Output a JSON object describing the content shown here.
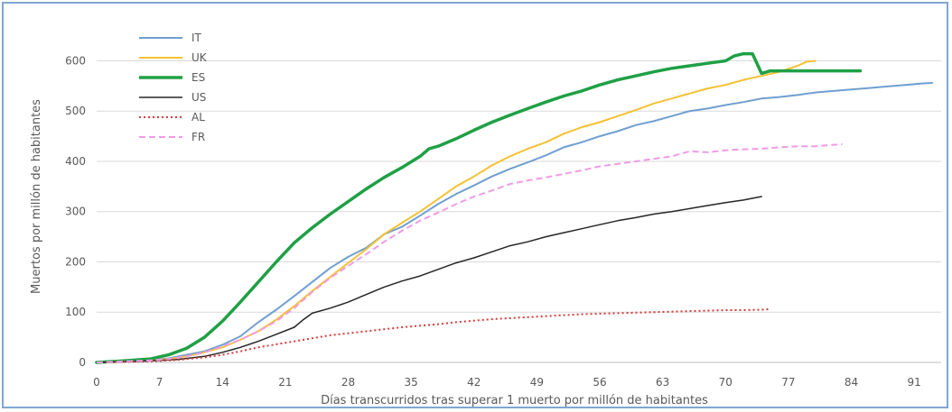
{
  "chart_data": {
    "type": "line",
    "title": "",
    "xlabel": "Días transcurridos tras superar 1 muerto por millón de habitantes",
    "ylabel": "Muertos por millón de habitantes",
    "xlim": [
      0,
      94
    ],
    "ylim": [
      0,
      660
    ],
    "x_ticks": [
      0,
      7,
      14,
      21,
      28,
      35,
      42,
      49,
      56,
      63,
      70,
      77,
      84,
      91
    ],
    "y_ticks": [
      0,
      100,
      200,
      300,
      400,
      500,
      600
    ],
    "grid": "horizontal",
    "legend_position": "top-left",
    "series": [
      {
        "name": "IT",
        "color": "#6f9fd0",
        "width": 2,
        "dash": "",
        "points": [
          [
            0,
            0
          ],
          [
            3,
            2
          ],
          [
            6,
            5
          ],
          [
            8,
            8
          ],
          [
            10,
            15
          ],
          [
            12,
            22
          ],
          [
            14,
            35
          ],
          [
            16,
            52
          ],
          [
            18,
            80
          ],
          [
            20,
            105
          ],
          [
            22,
            132
          ],
          [
            24,
            160
          ],
          [
            26,
            188
          ],
          [
            28,
            210
          ],
          [
            30,
            228
          ],
          [
            32,
            255
          ],
          [
            34,
            270
          ],
          [
            36,
            292
          ],
          [
            38,
            315
          ],
          [
            40,
            335
          ],
          [
            42,
            352
          ],
          [
            44,
            370
          ],
          [
            46,
            385
          ],
          [
            48,
            398
          ],
          [
            50,
            412
          ],
          [
            52,
            428
          ],
          [
            54,
            438
          ],
          [
            56,
            450
          ],
          [
            58,
            460
          ],
          [
            60,
            472
          ],
          [
            62,
            480
          ],
          [
            64,
            490
          ],
          [
            66,
            500
          ],
          [
            68,
            505
          ],
          [
            70,
            512
          ],
          [
            72,
            518
          ],
          [
            74,
            525
          ],
          [
            76,
            528
          ],
          [
            78,
            532
          ],
          [
            80,
            537
          ],
          [
            82,
            540
          ],
          [
            84,
            543
          ],
          [
            86,
            546
          ],
          [
            88,
            549
          ],
          [
            90,
            552
          ],
          [
            92,
            555
          ],
          [
            93,
            556
          ]
        ]
      },
      {
        "name": "UK",
        "color": "#f5c133",
        "width": 2,
        "dash": "",
        "points": [
          [
            0,
            0
          ],
          [
            3,
            2
          ],
          [
            6,
            4
          ],
          [
            8,
            7
          ],
          [
            10,
            12
          ],
          [
            12,
            20
          ],
          [
            14,
            30
          ],
          [
            16,
            45
          ],
          [
            18,
            62
          ],
          [
            20,
            85
          ],
          [
            22,
            112
          ],
          [
            24,
            142
          ],
          [
            26,
            170
          ],
          [
            28,
            198
          ],
          [
            30,
            225
          ],
          [
            32,
            255
          ],
          [
            34,
            278
          ],
          [
            36,
            300
          ],
          [
            38,
            325
          ],
          [
            40,
            350
          ],
          [
            42,
            370
          ],
          [
            44,
            392
          ],
          [
            46,
            410
          ],
          [
            48,
            425
          ],
          [
            50,
            438
          ],
          [
            52,
            455
          ],
          [
            54,
            468
          ],
          [
            56,
            478
          ],
          [
            58,
            490
          ],
          [
            60,
            502
          ],
          [
            62,
            515
          ],
          [
            64,
            525
          ],
          [
            66,
            535
          ],
          [
            68,
            545
          ],
          [
            70,
            552
          ],
          [
            72,
            562
          ],
          [
            74,
            570
          ],
          [
            76,
            578
          ],
          [
            78,
            590
          ],
          [
            79,
            598
          ],
          [
            80,
            600
          ]
        ]
      },
      {
        "name": "ES",
        "color": "#1fa045",
        "width": 3.5,
        "dash": "",
        "points": [
          [
            0,
            0
          ],
          [
            3,
            3
          ],
          [
            6,
            7
          ],
          [
            8,
            15
          ],
          [
            10,
            28
          ],
          [
            12,
            50
          ],
          [
            14,
            82
          ],
          [
            16,
            120
          ],
          [
            18,
            160
          ],
          [
            20,
            200
          ],
          [
            22,
            238
          ],
          [
            24,
            268
          ],
          [
            26,
            295
          ],
          [
            28,
            320
          ],
          [
            30,
            345
          ],
          [
            32,
            368
          ],
          [
            34,
            388
          ],
          [
            36,
            410
          ],
          [
            37,
            425
          ],
          [
            38,
            430
          ],
          [
            40,
            445
          ],
          [
            42,
            462
          ],
          [
            44,
            478
          ],
          [
            46,
            492
          ],
          [
            48,
            505
          ],
          [
            50,
            518
          ],
          [
            52,
            530
          ],
          [
            54,
            540
          ],
          [
            56,
            552
          ],
          [
            58,
            562
          ],
          [
            60,
            570
          ],
          [
            62,
            578
          ],
          [
            64,
            585
          ],
          [
            66,
            590
          ],
          [
            68,
            595
          ],
          [
            70,
            600
          ],
          [
            71,
            610
          ],
          [
            72,
            614
          ],
          [
            73,
            614
          ],
          [
            74,
            575
          ],
          [
            75,
            580
          ],
          [
            80,
            580
          ],
          [
            85,
            580
          ]
        ]
      },
      {
        "name": "US",
        "color": "#262626",
        "width": 1.5,
        "dash": "",
        "points": [
          [
            0,
            0
          ],
          [
            3,
            1
          ],
          [
            6,
            3
          ],
          [
            9,
            6
          ],
          [
            12,
            12
          ],
          [
            14,
            20
          ],
          [
            16,
            30
          ],
          [
            18,
            42
          ],
          [
            20,
            56
          ],
          [
            22,
            70
          ],
          [
            23,
            85
          ],
          [
            24,
            98
          ],
          [
            26,
            108
          ],
          [
            28,
            120
          ],
          [
            30,
            135
          ],
          [
            32,
            150
          ],
          [
            34,
            162
          ],
          [
            36,
            172
          ],
          [
            38,
            185
          ],
          [
            40,
            198
          ],
          [
            42,
            208
          ],
          [
            44,
            220
          ],
          [
            46,
            232
          ],
          [
            48,
            240
          ],
          [
            50,
            250
          ],
          [
            52,
            258
          ],
          [
            54,
            266
          ],
          [
            56,
            274
          ],
          [
            58,
            282
          ],
          [
            60,
            288
          ],
          [
            62,
            295
          ],
          [
            64,
            300
          ],
          [
            66,
            306
          ],
          [
            68,
            312
          ],
          [
            70,
            318
          ],
          [
            72,
            323
          ],
          [
            74,
            330
          ]
        ]
      },
      {
        "name": "AL",
        "color": "#d63a3a",
        "width": 2,
        "dash": "2,3",
        "points": [
          [
            0,
            0
          ],
          [
            3,
            1
          ],
          [
            6,
            2
          ],
          [
            9,
            5
          ],
          [
            12,
            10
          ],
          [
            14,
            15
          ],
          [
            16,
            22
          ],
          [
            18,
            30
          ],
          [
            20,
            36
          ],
          [
            22,
            42
          ],
          [
            24,
            48
          ],
          [
            26,
            54
          ],
          [
            28,
            58
          ],
          [
            30,
            62
          ],
          [
            32,
            66
          ],
          [
            34,
            70
          ],
          [
            36,
            73
          ],
          [
            38,
            76
          ],
          [
            40,
            80
          ],
          [
            42,
            83
          ],
          [
            44,
            86
          ],
          [
            46,
            88
          ],
          [
            48,
            90
          ],
          [
            50,
            92
          ],
          [
            52,
            94
          ],
          [
            54,
            96
          ],
          [
            56,
            97
          ],
          [
            58,
            98
          ],
          [
            60,
            99
          ],
          [
            62,
            100
          ],
          [
            64,
            101
          ],
          [
            66,
            102
          ],
          [
            68,
            103
          ],
          [
            70,
            104
          ],
          [
            72,
            104
          ],
          [
            74,
            105
          ],
          [
            75,
            106
          ]
        ]
      },
      {
        "name": "FR",
        "color": "#f09be6",
        "width": 2,
        "dash": "7,4",
        "points": [
          [
            0,
            0
          ],
          [
            3,
            2
          ],
          [
            6,
            4
          ],
          [
            8,
            7
          ],
          [
            10,
            12
          ],
          [
            12,
            20
          ],
          [
            14,
            32
          ],
          [
            16,
            45
          ],
          [
            18,
            62
          ],
          [
            20,
            82
          ],
          [
            22,
            108
          ],
          [
            24,
            140
          ],
          [
            26,
            168
          ],
          [
            28,
            192
          ],
          [
            30,
            215
          ],
          [
            32,
            240
          ],
          [
            34,
            262
          ],
          [
            36,
            282
          ],
          [
            38,
            298
          ],
          [
            40,
            315
          ],
          [
            42,
            330
          ],
          [
            44,
            342
          ],
          [
            46,
            355
          ],
          [
            48,
            362
          ],
          [
            50,
            368
          ],
          [
            52,
            375
          ],
          [
            54,
            382
          ],
          [
            56,
            390
          ],
          [
            58,
            395
          ],
          [
            60,
            400
          ],
          [
            62,
            405
          ],
          [
            64,
            410
          ],
          [
            66,
            420
          ],
          [
            68,
            418
          ],
          [
            70,
            422
          ],
          [
            72,
            424
          ],
          [
            74,
            425
          ],
          [
            76,
            428
          ],
          [
            78,
            430
          ],
          [
            80,
            430
          ],
          [
            82,
            433
          ],
          [
            83,
            434
          ]
        ]
      }
    ]
  }
}
